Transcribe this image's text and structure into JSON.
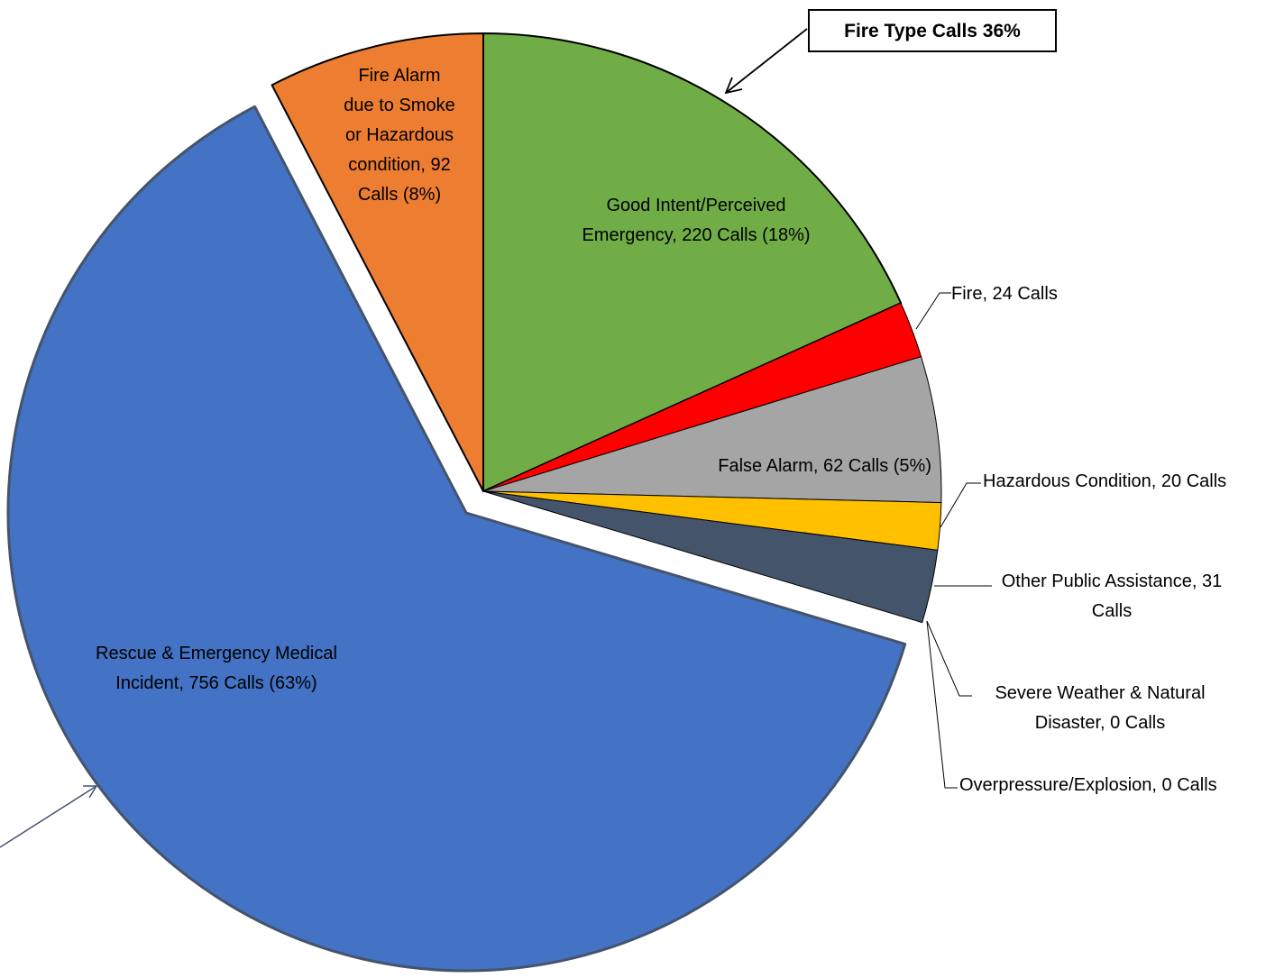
{
  "chart_data": {
    "type": "pie",
    "title": "",
    "slices": [
      {
        "name": "Good Intent/Perceived Emergency",
        "value": 220,
        "color": "#70AD47",
        "label_lines": [
          "Good Intent/Perceived",
          "Emergency, 220 Calls (18%)"
        ]
      },
      {
        "name": "Fire",
        "value": 24,
        "color": "#FF0000",
        "label_lines": [
          "Fire, 24 Calls"
        ]
      },
      {
        "name": "False Alarm",
        "value": 62,
        "color": "#A5A5A5",
        "label_lines": [
          "False Alarm, 62 Calls (5%)"
        ]
      },
      {
        "name": "Hazardous Condition",
        "value": 20,
        "color": "#FFC000",
        "label_lines": [
          "Hazardous Condition, 20 Calls"
        ]
      },
      {
        "name": "Other Public Assistance",
        "value": 31,
        "color": "#44546A",
        "label_lines": [
          "Other Public Assistance, 31",
          "Calls"
        ]
      },
      {
        "name": "Severe Weather & Natural Disaster",
        "value": 0,
        "color": "#5B9BD5",
        "label_lines": [
          "Severe Weather & Natural",
          "Disaster, 0 Calls"
        ]
      },
      {
        "name": "Overpressure/Explosion",
        "value": 0,
        "color": "#264478",
        "label_lines": [
          "Overpressure/Explosion, 0 Calls"
        ]
      },
      {
        "name": "Rescue & Emergency Medical Incident",
        "value": 756,
        "color": "#4472C4",
        "label_lines": [
          "Rescue & Emergency Medical",
          "Incident, 756 Calls (63%)"
        ]
      },
      {
        "name": "Fire Alarm due to Smoke or Hazardous condition",
        "value": 92,
        "color": "#ED7D31",
        "label_lines": [
          "Fire Alarm",
          "due to Smoke",
          "or Hazardous",
          "condition, 92",
          "Calls (8%)"
        ]
      }
    ],
    "annotations": [
      {
        "text": "Fire Type Calls 36%"
      }
    ]
  }
}
